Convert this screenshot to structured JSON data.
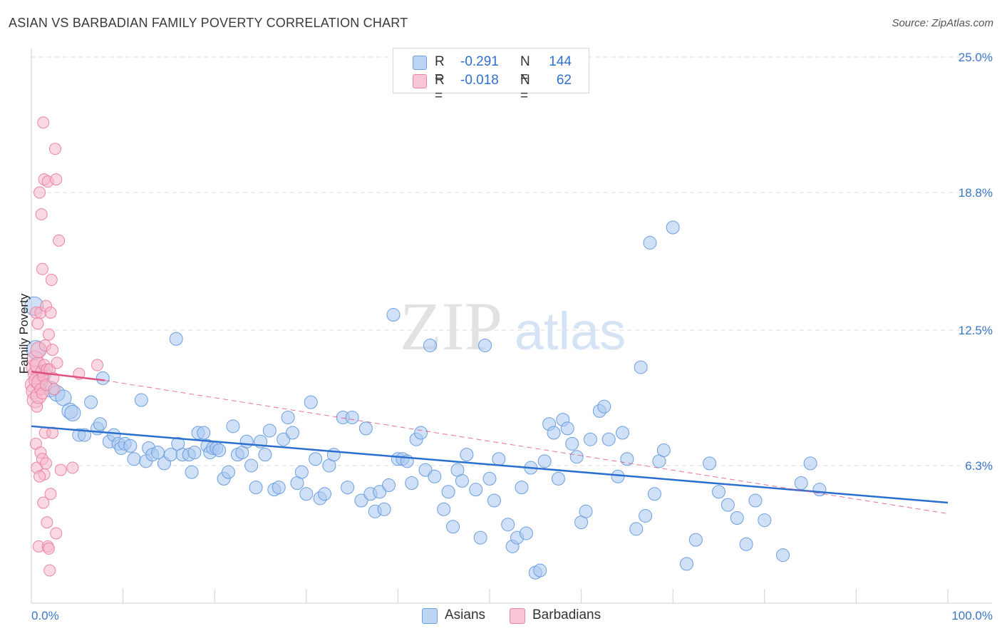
{
  "title": "ASIAN VS BARBADIAN FAMILY POVERTY CORRELATION CHART",
  "source": "Source: ZipAtlas.com",
  "watermark": {
    "zip": "ZIP",
    "atlas": "atlas"
  },
  "legend": {
    "rows": [
      {
        "r_label": "R =",
        "r_value": "-0.291",
        "n_label": "N =",
        "n_value": "144"
      },
      {
        "r_label": "R =",
        "r_value": "-0.018",
        "n_label": "N =",
        "n_value": "62"
      }
    ]
  },
  "bottom_legend": {
    "asians": "Asians",
    "barbadians": "Barbadians"
  },
  "colors": {
    "asian_fill": "#a9c8f0",
    "asian_stroke": "#6b9ee0",
    "asian_line": "#2a6fcf",
    "barb_fill": "#f5b8cb",
    "barb_stroke": "#ea84a5",
    "barb_line": "#e0507e",
    "tick_text": "#3b76c7",
    "grid": "#dcdcdc"
  },
  "chart_data": {
    "type": "scatter",
    "title": "ASIAN VS BARBADIAN FAMILY POVERTY CORRELATION CHART",
    "xlabel": "",
    "ylabel": "Family Poverty",
    "xlim": [
      0,
      100
    ],
    "ylim": [
      0,
      25.0
    ],
    "x_tick_labels": [
      "0.0%",
      "100.0%"
    ],
    "y_ticks": [
      6.3,
      12.5,
      18.8,
      25.0
    ],
    "y_tick_labels": [
      "6.3%",
      "12.5%",
      "18.8%",
      "25.0%"
    ],
    "series": [
      {
        "name": "Asians",
        "R": -0.291,
        "N": 144,
        "trend": {
          "x": [
            0,
            100
          ],
          "y": [
            8.1,
            4.6
          ]
        },
        "points": [
          [
            0.3,
            13.6
          ],
          [
            0.5,
            11.6
          ],
          [
            1.2,
            10.5
          ],
          [
            2.1,
            9.8
          ],
          [
            2.8,
            9.6
          ],
          [
            3.5,
            9.4
          ],
          [
            4.2,
            8.8
          ],
          [
            4.5,
            8.7
          ],
          [
            5.2,
            7.7
          ],
          [
            5.8,
            7.7
          ],
          [
            6.5,
            9.2
          ],
          [
            7.2,
            8.0
          ],
          [
            7.5,
            8.2
          ],
          [
            7.8,
            10.3
          ],
          [
            8.5,
            7.4
          ],
          [
            9.0,
            7.7
          ],
          [
            9.5,
            7.3
          ],
          [
            9.8,
            7.1
          ],
          [
            10.2,
            7.3
          ],
          [
            10.8,
            7.2
          ],
          [
            11.2,
            6.6
          ],
          [
            12.0,
            9.3
          ],
          [
            12.5,
            6.5
          ],
          [
            12.8,
            7.1
          ],
          [
            13.2,
            6.8
          ],
          [
            13.8,
            6.9
          ],
          [
            14.5,
            6.4
          ],
          [
            15.2,
            6.8
          ],
          [
            15.8,
            12.1
          ],
          [
            16.0,
            7.3
          ],
          [
            16.5,
            6.8
          ],
          [
            17.2,
            6.8
          ],
          [
            17.5,
            6.0
          ],
          [
            17.8,
            6.9
          ],
          [
            18.2,
            7.8
          ],
          [
            18.8,
            7.8
          ],
          [
            19.2,
            7.2
          ],
          [
            19.5,
            6.9
          ],
          [
            19.8,
            7.1
          ],
          [
            20.2,
            7.1
          ],
          [
            20.5,
            7.0
          ],
          [
            21.0,
            5.7
          ],
          [
            21.5,
            6.0
          ],
          [
            22.0,
            8.1
          ],
          [
            22.5,
            6.8
          ],
          [
            23.0,
            6.9
          ],
          [
            23.5,
            7.4
          ],
          [
            24.0,
            6.3
          ],
          [
            24.5,
            5.3
          ],
          [
            25.0,
            7.4
          ],
          [
            25.5,
            6.8
          ],
          [
            26.0,
            7.9
          ],
          [
            26.5,
            5.2
          ],
          [
            27.0,
            5.3
          ],
          [
            27.5,
            7.5
          ],
          [
            28.0,
            8.5
          ],
          [
            28.5,
            7.8
          ],
          [
            29.0,
            5.5
          ],
          [
            29.5,
            6.0
          ],
          [
            30.0,
            5.0
          ],
          [
            30.5,
            9.2
          ],
          [
            31.0,
            6.6
          ],
          [
            31.5,
            4.8
          ],
          [
            32.0,
            5.0
          ],
          [
            32.5,
            6.3
          ],
          [
            33.0,
            6.8
          ],
          [
            34.0,
            8.5
          ],
          [
            34.5,
            5.3
          ],
          [
            35.0,
            8.5
          ],
          [
            36.0,
            4.7
          ],
          [
            36.5,
            8.0
          ],
          [
            37.0,
            5.0
          ],
          [
            37.5,
            4.2
          ],
          [
            38.0,
            5.1
          ],
          [
            38.5,
            4.3
          ],
          [
            39.0,
            5.4
          ],
          [
            39.5,
            13.2
          ],
          [
            40.0,
            6.6
          ],
          [
            40.5,
            6.6
          ],
          [
            41.0,
            6.5
          ],
          [
            41.5,
            5.5
          ],
          [
            42.0,
            7.5
          ],
          [
            42.5,
            7.8
          ],
          [
            43.0,
            6.1
          ],
          [
            43.5,
            11.8
          ],
          [
            44.0,
            5.8
          ],
          [
            45.0,
            4.3
          ],
          [
            45.5,
            5.1
          ],
          [
            46.0,
            3.5
          ],
          [
            46.5,
            6.1
          ],
          [
            47.0,
            5.6
          ],
          [
            47.5,
            6.8
          ],
          [
            48.5,
            5.2
          ],
          [
            49.0,
            3.0
          ],
          [
            49.5,
            11.8
          ],
          [
            50.0,
            5.7
          ],
          [
            50.5,
            4.7
          ],
          [
            51.0,
            6.6
          ],
          [
            52.0,
            3.6
          ],
          [
            52.5,
            2.6
          ],
          [
            53.0,
            3.0
          ],
          [
            53.5,
            5.3
          ],
          [
            54.0,
            3.2
          ],
          [
            54.5,
            6.2
          ],
          [
            55.0,
            1.4
          ],
          [
            55.5,
            1.5
          ],
          [
            56.0,
            6.5
          ],
          [
            56.5,
            8.2
          ],
          [
            57.0,
            7.8
          ],
          [
            57.5,
            5.7
          ],
          [
            58.0,
            8.4
          ],
          [
            58.5,
            8.0
          ],
          [
            59.0,
            7.3
          ],
          [
            59.5,
            6.7
          ],
          [
            60.0,
            3.7
          ],
          [
            60.5,
            4.2
          ],
          [
            61.0,
            7.5
          ],
          [
            62.0,
            8.8
          ],
          [
            62.5,
            9.0
          ],
          [
            63.0,
            7.5
          ],
          [
            64.0,
            5.8
          ],
          [
            64.5,
            7.8
          ],
          [
            65.0,
            6.6
          ],
          [
            66.0,
            3.4
          ],
          [
            66.5,
            10.8
          ],
          [
            67.0,
            4.0
          ],
          [
            67.5,
            16.5
          ],
          [
            68.0,
            5.0
          ],
          [
            68.5,
            6.5
          ],
          [
            69.0,
            7.0
          ],
          [
            70.0,
            17.2
          ],
          [
            71.5,
            1.8
          ],
          [
            72.5,
            2.9
          ],
          [
            74.0,
            6.4
          ],
          [
            75.0,
            5.1
          ],
          [
            76.0,
            4.5
          ],
          [
            77.0,
            3.9
          ],
          [
            78.0,
            2.7
          ],
          [
            79.0,
            4.7
          ],
          [
            80.0,
            3.8
          ],
          [
            82.0,
            2.2
          ],
          [
            84.0,
            5.5
          ],
          [
            85.0,
            6.4
          ],
          [
            86.0,
            5.2
          ]
        ]
      },
      {
        "name": "Barbadians",
        "R": -0.018,
        "N": 62,
        "trend_solid": {
          "x": [
            0,
            8.0
          ],
          "y": [
            10.6,
            10.2
          ]
        },
        "trend_dashed": {
          "x": [
            8.0,
            100
          ],
          "y": [
            10.2,
            4.1
          ]
        },
        "points": [
          [
            0.2,
            10.0
          ],
          [
            0.3,
            9.7
          ],
          [
            0.3,
            10.8
          ],
          [
            0.4,
            9.3
          ],
          [
            0.4,
            11.2
          ],
          [
            0.5,
            10.5
          ],
          [
            0.5,
            13.3
          ],
          [
            0.6,
            9.0
          ],
          [
            0.6,
            10.2
          ],
          [
            0.7,
            10.9
          ],
          [
            0.7,
            12.8
          ],
          [
            0.8,
            9.5
          ],
          [
            0.8,
            11.6
          ],
          [
            0.9,
            10.1
          ],
          [
            0.9,
            18.8
          ],
          [
            1.0,
            9.8
          ],
          [
            1.0,
            13.3
          ],
          [
            1.1,
            10.6
          ],
          [
            1.1,
            17.8
          ],
          [
            1.2,
            9.6
          ],
          [
            1.2,
            15.3
          ],
          [
            1.3,
            10.4
          ],
          [
            1.3,
            22.0
          ],
          [
            1.4,
            10.9
          ],
          [
            1.4,
            19.4
          ],
          [
            1.5,
            11.8
          ],
          [
            1.6,
            10.0
          ],
          [
            1.6,
            13.6
          ],
          [
            1.7,
            10.7
          ],
          [
            1.8,
            19.3
          ],
          [
            1.9,
            12.3
          ],
          [
            2.0,
            10.7
          ],
          [
            2.1,
            13.3
          ],
          [
            2.2,
            14.8
          ],
          [
            2.3,
            11.6
          ],
          [
            2.4,
            10.3
          ],
          [
            2.5,
            9.8
          ],
          [
            2.6,
            20.8
          ],
          [
            2.7,
            19.4
          ],
          [
            2.8,
            11.0
          ],
          [
            3.0,
            16.6
          ],
          [
            0.5,
            7.3
          ],
          [
            0.6,
            6.2
          ],
          [
            0.8,
            2.6
          ],
          [
            1.0,
            6.9
          ],
          [
            1.2,
            6.6
          ],
          [
            1.4,
            5.9
          ],
          [
            1.5,
            7.8
          ],
          [
            1.6,
            6.4
          ],
          [
            1.7,
            3.7
          ],
          [
            1.8,
            2.6
          ],
          [
            1.9,
            2.5
          ],
          [
            2.0,
            1.5
          ],
          [
            2.1,
            5.0
          ],
          [
            2.3,
            7.8
          ],
          [
            2.7,
            3.2
          ],
          [
            3.2,
            6.1
          ],
          [
            4.5,
            6.2
          ],
          [
            5.2,
            10.5
          ],
          [
            7.2,
            10.9
          ],
          [
            0.9,
            5.8
          ],
          [
            1.3,
            4.6
          ]
        ]
      }
    ]
  }
}
